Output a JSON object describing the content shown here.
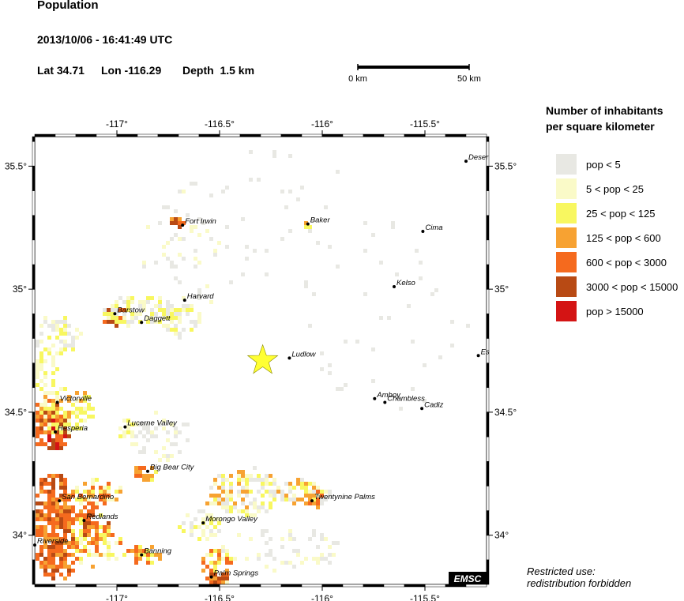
{
  "header": {
    "title": "Population",
    "datetime": "2013/10/06 - 16:41:49 UTC",
    "lat_label": "Lat 34.71",
    "lon_label": "Lon -116.29",
    "depth_label": "Depth  1.5 km"
  },
  "scale_bar": {
    "left_label": "0 km",
    "right_label": "50 km"
  },
  "map": {
    "lon_ticks": [
      {
        "value": -117,
        "label": "-117°"
      },
      {
        "value": -116.5,
        "label": "-116.5°"
      },
      {
        "value": -116,
        "label": "-116°"
      },
      {
        "value": -115.5,
        "label": "-115.5°"
      }
    ],
    "lat_ticks": [
      {
        "value": 35.5,
        "label": "35.5°"
      },
      {
        "value": 35,
        "label": "35°"
      },
      {
        "value": 34.5,
        "label": "34.5°"
      },
      {
        "value": 34,
        "label": "34°"
      }
    ],
    "epicenter": {
      "lon": -116.29,
      "lat": 34.71,
      "color": "#ffff33"
    },
    "places": [
      {
        "name": "Deser",
        "lon": -115.3,
        "lat": 35.52
      },
      {
        "name": "Fort Irwin",
        "lon": -116.68,
        "lat": 35.26
      },
      {
        "name": "Baker",
        "lon": -116.07,
        "lat": 35.265
      },
      {
        "name": "Cima",
        "lon": -115.51,
        "lat": 35.235
      },
      {
        "name": "Kelso",
        "lon": -115.65,
        "lat": 35.01
      },
      {
        "name": "Harvard",
        "lon": -116.67,
        "lat": 34.955
      },
      {
        "name": "Barstow",
        "lon": -117.01,
        "lat": 34.9
      },
      {
        "name": "Daggett",
        "lon": -116.88,
        "lat": 34.865
      },
      {
        "name": "Ludlow",
        "lon": -116.16,
        "lat": 34.72
      },
      {
        "name": "Es",
        "lon": -115.24,
        "lat": 34.73
      },
      {
        "name": "Amboy",
        "lon": -115.745,
        "lat": 34.555
      },
      {
        "name": "Chambless",
        "lon": -115.695,
        "lat": 34.54
      },
      {
        "name": "Cadiz",
        "lon": -115.515,
        "lat": 34.515
      },
      {
        "name": "Victorville",
        "lon": -117.29,
        "lat": 34.54
      },
      {
        "name": "Hesperia",
        "lon": -117.3,
        "lat": 34.42
      },
      {
        "name": "Lucerne Valley",
        "lon": -116.96,
        "lat": 34.44
      },
      {
        "name": "Big Bear City",
        "lon": -116.85,
        "lat": 34.26
      },
      {
        "name": "San Bernardino",
        "lon": -117.28,
        "lat": 34.14
      },
      {
        "name": "Twentynine Palms",
        "lon": -116.05,
        "lat": 34.14
      },
      {
        "name": "Redlands",
        "lon": -117.16,
        "lat": 34.06
      },
      {
        "name": "Morongo Valley",
        "lon": -116.58,
        "lat": 34.05
      },
      {
        "name": "Riverside",
        "lon": -117.4,
        "lat": 33.96
      },
      {
        "name": "Banning",
        "lon": -116.88,
        "lat": 33.92
      },
      {
        "name": "Palm Springs",
        "lon": -116.54,
        "lat": 33.83
      }
    ],
    "watermark": "EMSC"
  },
  "legend": {
    "title_line1": "Number of inhabitants",
    "title_line2": "per square kilometer",
    "items": [
      {
        "label": "pop < 5",
        "color": "#e8e8e3"
      },
      {
        "label": "5 < pop < 25",
        "color": "#fafac8"
      },
      {
        "label": "25 < pop < 125",
        "color": "#f8f760"
      },
      {
        "label": "125 < pop < 600",
        "color": "#f7a232"
      },
      {
        "label": "600 < pop < 3000",
        "color": "#f56a1e"
      },
      {
        "label": "3000 < pop < 15000",
        "color": "#b84a14"
      },
      {
        "label": "pop > 15000",
        "color": "#d41414"
      }
    ]
  },
  "footer": {
    "line1": "Restricted use:",
    "line2": "redistribution forbidden"
  }
}
